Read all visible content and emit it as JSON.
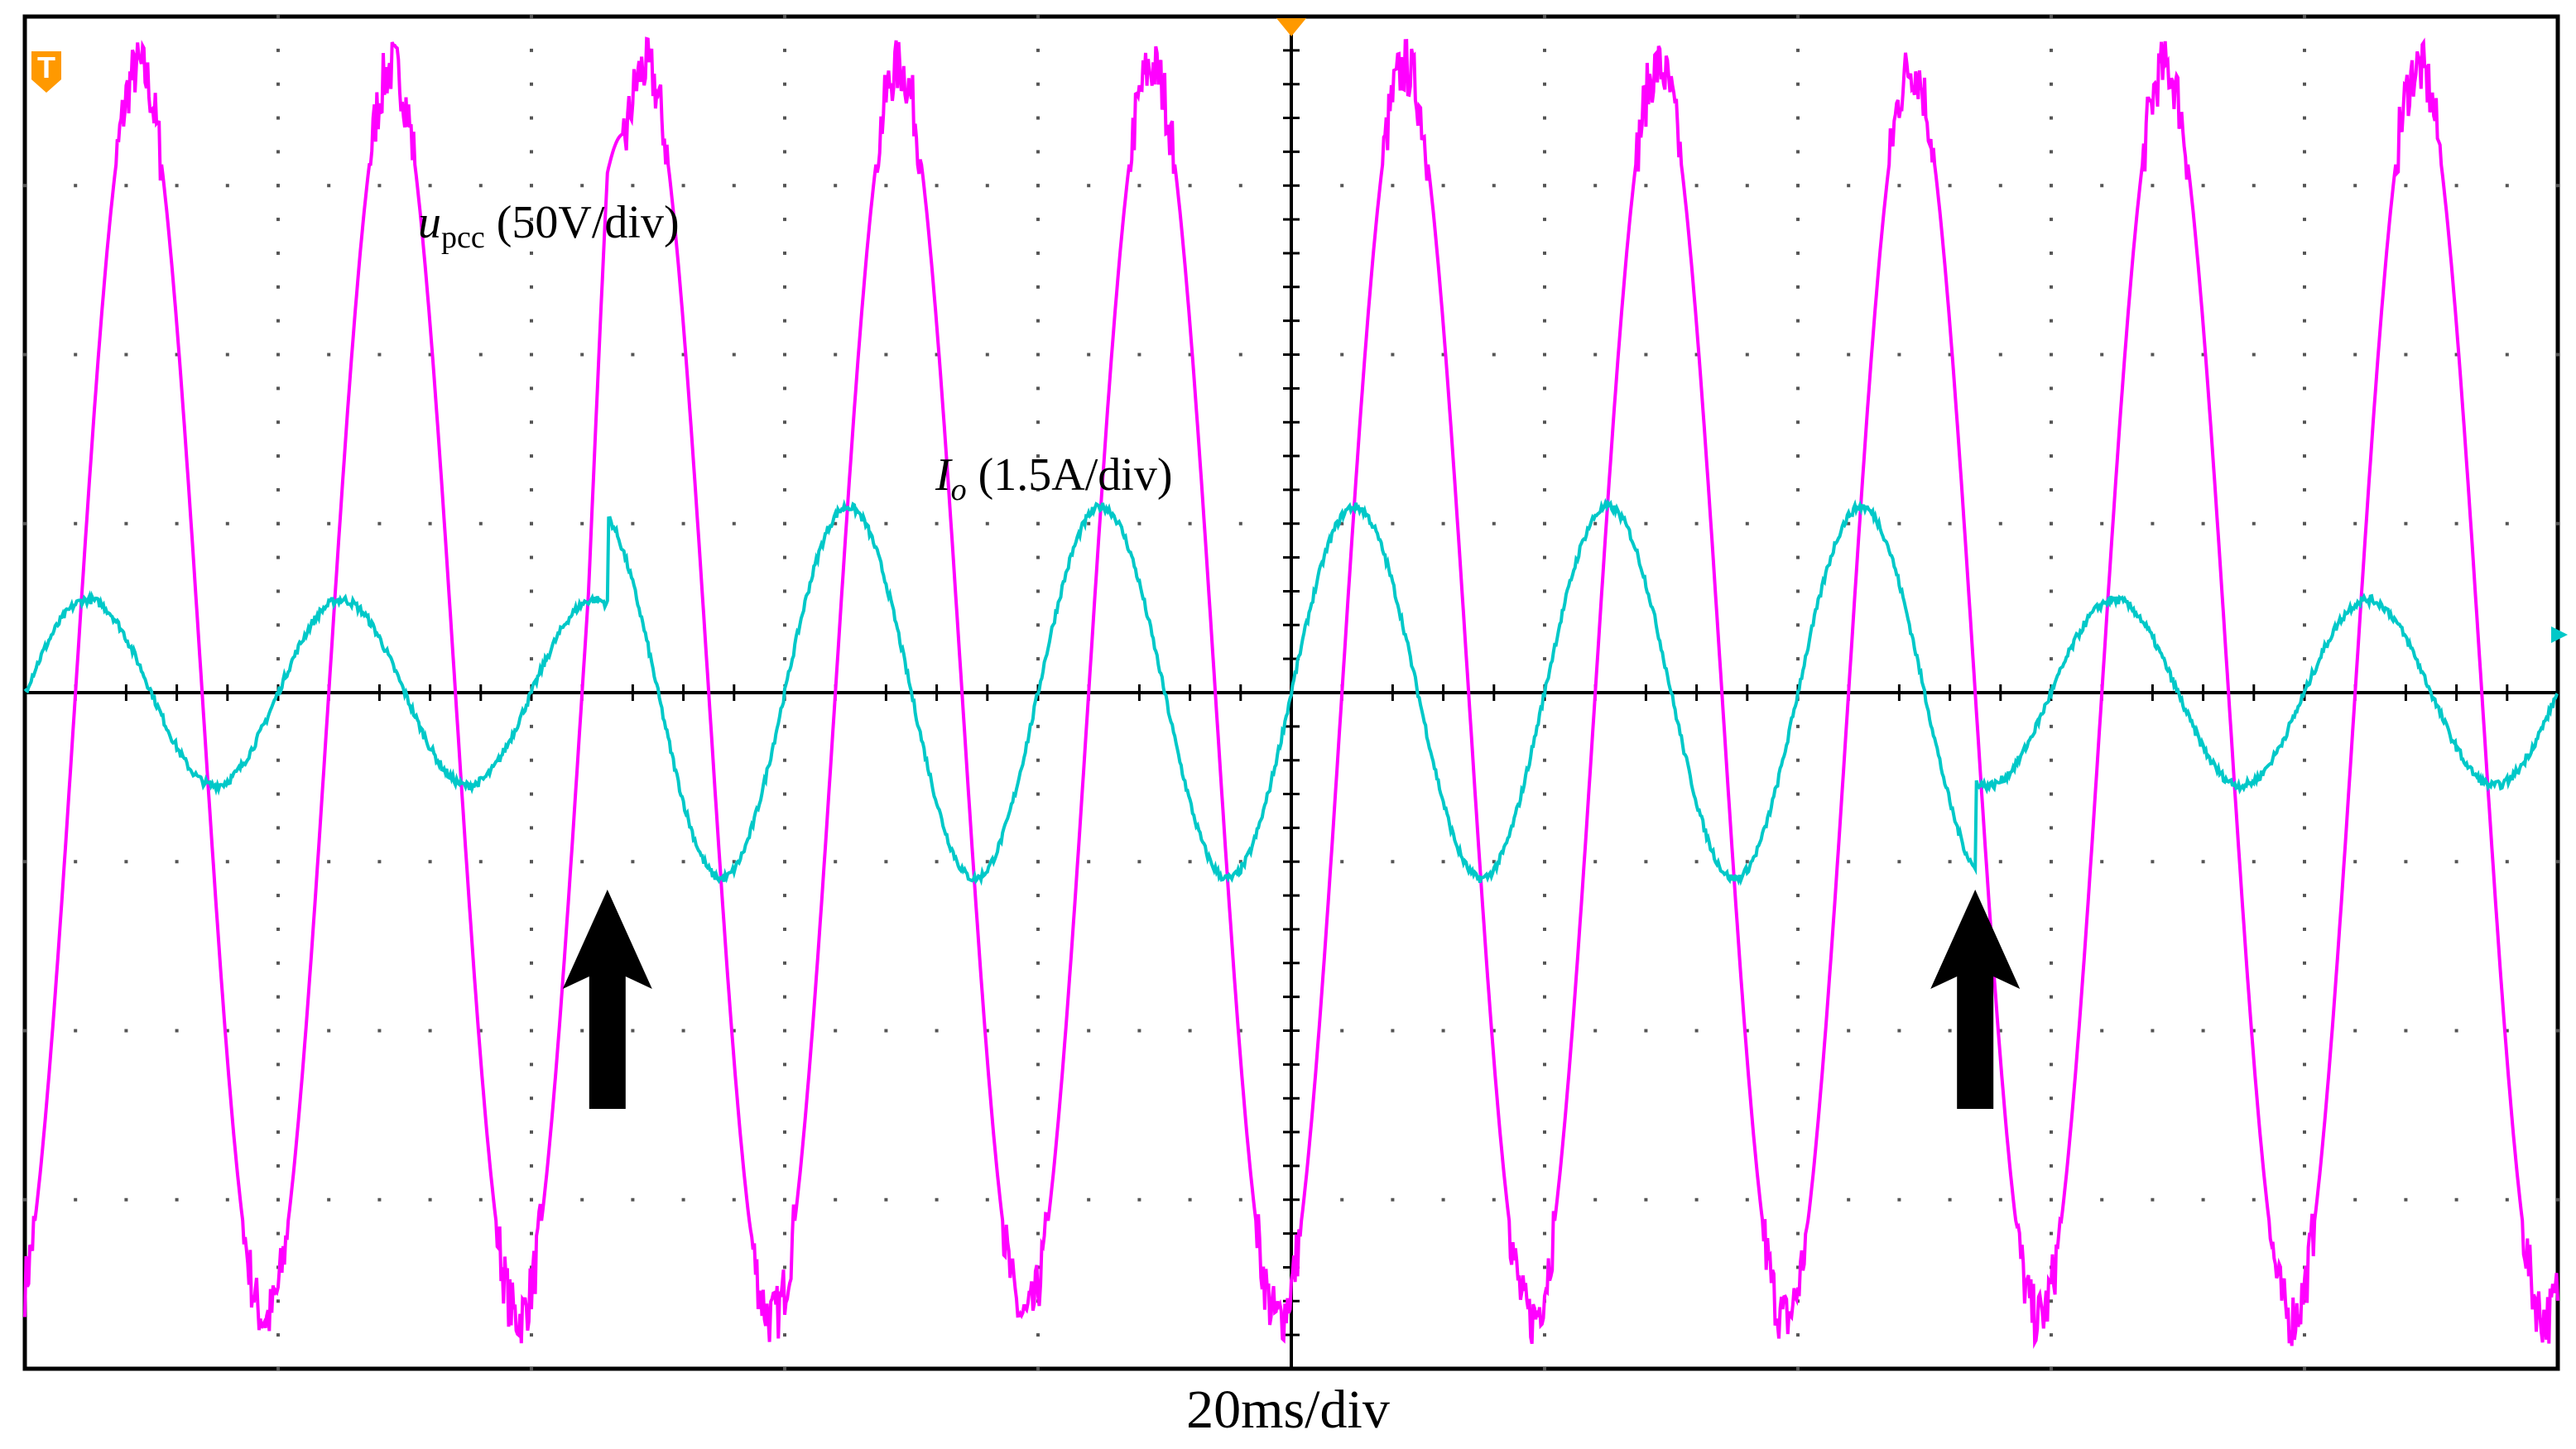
{
  "chart_data": {
    "type": "line",
    "title": "",
    "xlabel": "20ms/div",
    "time_per_div_ms": 20,
    "divisions": {
      "x": 10,
      "y": 8
    },
    "x_range_ms": [
      -100,
      100
    ],
    "annotations": [
      {
        "name": "event-1",
        "t_ms": -54,
        "marker": "arrow-up"
      },
      {
        "name": "event-2",
        "t_ms": 54,
        "marker": "arrow-up"
      }
    ],
    "series": [
      {
        "name": "u_pcc",
        "label_main": "u",
        "label_sub": "pcc",
        "label_rest": " (50V/div)",
        "scale": "50V/div",
        "color": "#ff00ff",
        "unit": "V",
        "frequency_hz": 50,
        "amplitude_div": 3.7,
        "amplitude_v": 185,
        "phase_zero_cross_ms": -96
      },
      {
        "name": "I_o",
        "label_main": "I",
        "label_sub": "o",
        "label_rest": " (1.5A/div)",
        "scale": "1.5A/div",
        "color": "#00c8c8",
        "unit": "A",
        "frequency_hz": 50,
        "segments": [
          {
            "t_start_ms": -100,
            "t_end_ms": -54,
            "amplitude_div": 0.55,
            "amplitude_a": 0.83
          },
          {
            "t_start_ms": -54,
            "t_end_ms": 54,
            "amplitude_div": 1.1,
            "amplitude_a": 1.65
          },
          {
            "t_start_ms": 54,
            "t_end_ms": 100,
            "amplitude_div": 0.55,
            "amplitude_a": 0.83
          }
        ],
        "phase_zero_cross_ms": -80
      }
    ],
    "markers": {
      "trigger": "T",
      "trigger_color": "#ff9900",
      "ground_color": "#00c8c8"
    }
  }
}
